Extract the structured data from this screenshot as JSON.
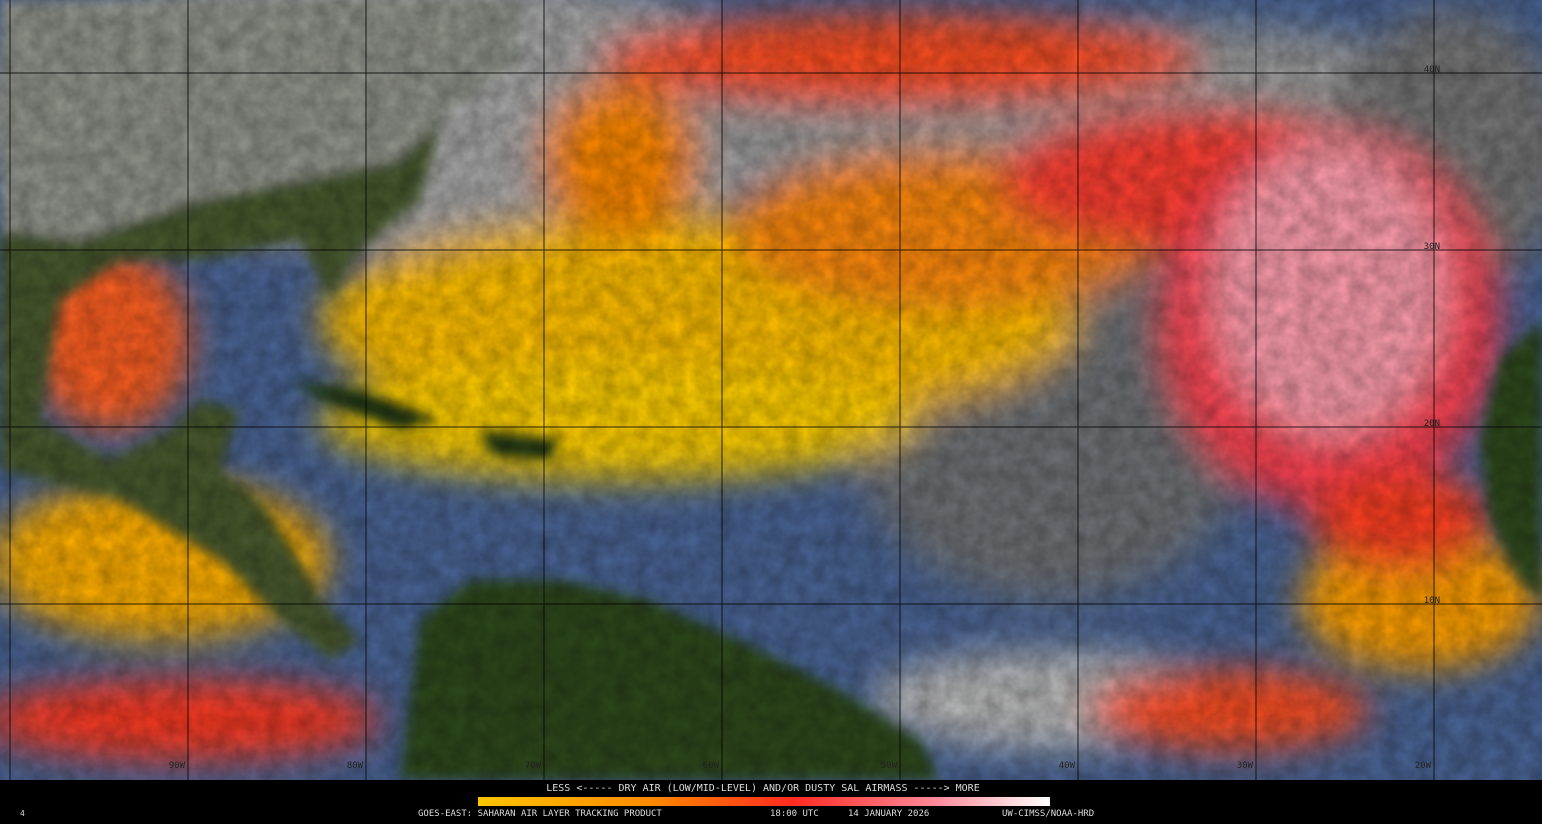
{
  "legend": {
    "caption": "LESS <----- DRY AIR (LOW/MID-LEVEL) AND/OR DUSTY SAL AIRMASS -----> MORE"
  },
  "footer": {
    "frame": "4",
    "product": "GOES-EAST: SAHARAN AIR LAYER TRACKING PRODUCT",
    "time": "18:00 UTC",
    "date": "14 JANUARY 2026",
    "credit": "UW-CIMSS/NOAA-HRD"
  },
  "grid": {
    "lat_labels": [
      "40N",
      "30N",
      "20N",
      "10N"
    ],
    "lon_labels": [
      "90W",
      "80W",
      "70W",
      "60W",
      "50W",
      "40W",
      "30W",
      "20W"
    ]
  }
}
